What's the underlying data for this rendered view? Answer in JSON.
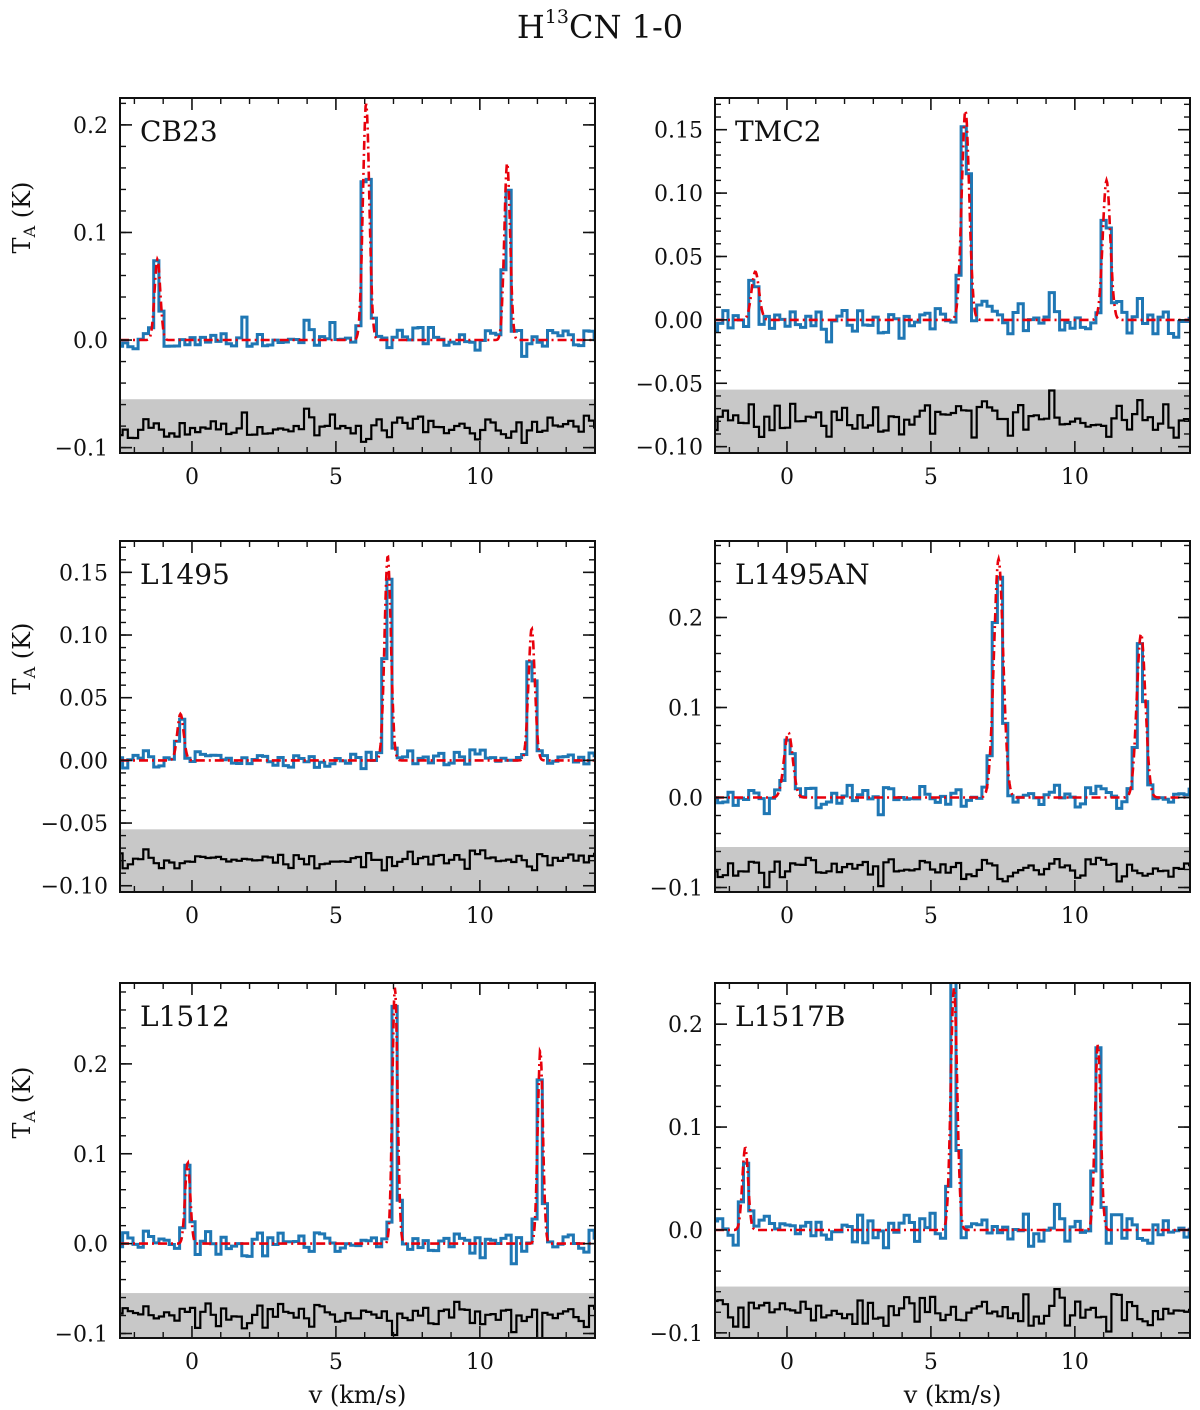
{
  "figure": {
    "title_main": "H",
    "title_sup": "13",
    "title_rest": "CN 1-0"
  },
  "colors": {
    "observed": "#1f77b4",
    "model": "#e8000b",
    "residual": "#000000",
    "residual_band": "#c8c8c8"
  },
  "chart_data": [
    {
      "type": "line",
      "name": "CB23",
      "label": "CB23",
      "xlabel": "",
      "ylabel": "T_A (K)",
      "xlim": [
        -2.5,
        14
      ],
      "ylim": [
        -0.105,
        0.225
      ],
      "yticks": [
        -0.1,
        0.0,
        0.1,
        0.2
      ],
      "ytick_labels": [
        "−0.1",
        "0.0",
        "0.1",
        "0.2"
      ],
      "xticks": [
        0,
        5,
        10
      ],
      "xtick_labels": [
        "0",
        "5",
        "10"
      ],
      "residual_band": [
        -0.105,
        -0.055
      ],
      "residual_offset": -0.082,
      "components": [
        {
          "center": -1.2,
          "amp": 0.075,
          "sigma": 0.1
        },
        {
          "center": 6.05,
          "amp": 0.22,
          "sigma": 0.11
        },
        {
          "center": 10.95,
          "amp": 0.165,
          "sigma": 0.1
        }
      ],
      "noise": 0.006,
      "seed": 11
    },
    {
      "type": "line",
      "name": "TMC2",
      "label": "TMC2",
      "xlabel": "",
      "ylabel": "",
      "xlim": [
        -2.5,
        14
      ],
      "ylim": [
        -0.105,
        0.175
      ],
      "yticks": [
        -0.1,
        -0.05,
        0.0,
        0.05,
        0.1,
        0.15
      ],
      "ytick_labels": [
        "−0.10",
        "−0.05",
        "0.00",
        "0.05",
        "0.10",
        "0.15"
      ],
      "xticks": [
        0,
        5,
        10
      ],
      "xtick_labels": [
        "0",
        "5",
        "10"
      ],
      "residual_band": [
        -0.105,
        -0.055
      ],
      "residual_offset": -0.078,
      "components": [
        {
          "center": -1.1,
          "amp": 0.038,
          "sigma": 0.13
        },
        {
          "center": 6.2,
          "amp": 0.165,
          "sigma": 0.13
        },
        {
          "center": 11.1,
          "amp": 0.11,
          "sigma": 0.13
        }
      ],
      "noise": 0.007,
      "seed": 23
    },
    {
      "type": "line",
      "name": "L1495",
      "label": "L1495",
      "xlabel": "",
      "ylabel": "T_A (K)",
      "xlim": [
        -2.5,
        14
      ],
      "ylim": [
        -0.105,
        0.175
      ],
      "yticks": [
        -0.1,
        -0.05,
        0.0,
        0.05,
        0.1,
        0.15
      ],
      "ytick_labels": [
        "−0.10",
        "−0.05",
        "0.00",
        "0.05",
        "0.10",
        "0.15"
      ],
      "xticks": [
        0,
        5,
        10
      ],
      "xtick_labels": [
        "0",
        "5",
        "10"
      ],
      "residual_band": [
        -0.105,
        -0.055
      ],
      "residual_offset": -0.08,
      "components": [
        {
          "center": -0.4,
          "amp": 0.037,
          "sigma": 0.11
        },
        {
          "center": 6.8,
          "amp": 0.163,
          "sigma": 0.11
        },
        {
          "center": 11.8,
          "amp": 0.105,
          "sigma": 0.11
        }
      ],
      "noise": 0.004,
      "seed": 37
    },
    {
      "type": "line",
      "name": "L1495AN",
      "label": "L1495AN",
      "xlabel": "",
      "ylabel": "",
      "xlim": [
        -2.5,
        14
      ],
      "ylim": [
        -0.105,
        0.285
      ],
      "yticks": [
        -0.1,
        0.0,
        0.1,
        0.2
      ],
      "ytick_labels": [
        "−0.1",
        "0.0",
        "0.1",
        "0.2"
      ],
      "xticks": [
        0,
        5,
        10
      ],
      "xtick_labels": [
        "0",
        "5",
        "10"
      ],
      "residual_band": [
        -0.105,
        -0.055
      ],
      "residual_offset": -0.08,
      "components": [
        {
          "center": 0.05,
          "amp": 0.072,
          "sigma": 0.15
        },
        {
          "center": 7.35,
          "amp": 0.265,
          "sigma": 0.16
        },
        {
          "center": 12.3,
          "amp": 0.182,
          "sigma": 0.15
        }
      ],
      "noise": 0.006,
      "seed": 51
    },
    {
      "type": "line",
      "name": "L1512",
      "label": "L1512",
      "xlabel": "v (km/s)",
      "ylabel": "T_A (K)",
      "xlim": [
        -2.5,
        14
      ],
      "ylim": [
        -0.105,
        0.29
      ],
      "yticks": [
        -0.1,
        0.0,
        0.1,
        0.2
      ],
      "ytick_labels": [
        "−0.1",
        "0.0",
        "0.1",
        "0.2"
      ],
      "xticks": [
        0,
        5,
        10
      ],
      "xtick_labels": [
        "0",
        "5",
        "10"
      ],
      "residual_band": [
        -0.105,
        -0.055
      ],
      "residual_offset": -0.08,
      "components": [
        {
          "center": -0.15,
          "amp": 0.09,
          "sigma": 0.09
        },
        {
          "center": 7.05,
          "amp": 0.285,
          "sigma": 0.09
        },
        {
          "center": 12.1,
          "amp": 0.215,
          "sigma": 0.09
        }
      ],
      "noise": 0.007,
      "seed": 67
    },
    {
      "type": "line",
      "name": "L1517B",
      "label": "L1517B",
      "xlabel": "v (km/s)",
      "ylabel": "",
      "xlim": [
        -2.5,
        14
      ],
      "ylim": [
        -0.105,
        0.24
      ],
      "yticks": [
        -0.1,
        0.0,
        0.1,
        0.2
      ],
      "ytick_labels": [
        "−0.1",
        "0.0",
        "0.1",
        "0.2"
      ],
      "xticks": [
        0,
        5,
        10
      ],
      "xtick_labels": [
        "0",
        "5",
        "10"
      ],
      "residual_band": [
        -0.105,
        -0.055
      ],
      "residual_offset": -0.08,
      "components": [
        {
          "center": -1.45,
          "amp": 0.08,
          "sigma": 0.1
        },
        {
          "center": 5.8,
          "amp": 0.235,
          "sigma": 0.11
        },
        {
          "center": 10.8,
          "amp": 0.18,
          "sigma": 0.1
        }
      ],
      "noise": 0.008,
      "seed": 79
    }
  ]
}
